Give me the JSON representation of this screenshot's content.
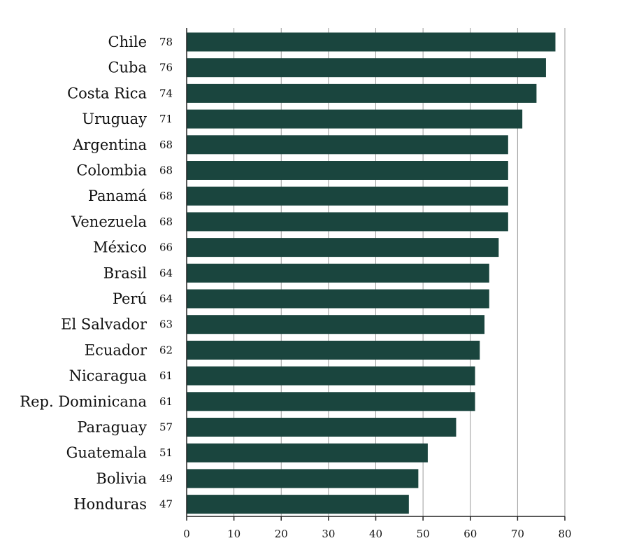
{
  "chart_data": {
    "type": "bar",
    "orientation": "horizontal",
    "categories": [
      "Chile",
      "Cuba",
      "Costa Rica",
      "Uruguay",
      "Argentina",
      "Colombia",
      "Panamá",
      "Venezuela",
      "México",
      "Brasil",
      "Perú",
      "El Salvador",
      "Ecuador",
      "Nicaragua",
      "Rep. Dominicana",
      "Paraguay",
      "Guatemala",
      "Bolivia",
      "Honduras"
    ],
    "values": [
      78,
      76,
      74,
      71,
      68,
      68,
      68,
      68,
      66,
      64,
      64,
      63,
      62,
      61,
      61,
      57,
      51,
      49,
      47
    ],
    "value_labels": [
      "78",
      "76",
      "74",
      "71",
      "68",
      "68",
      "68",
      "68",
      "66",
      "64",
      "64",
      "63",
      "62",
      "61",
      "61",
      "57",
      "51",
      "49",
      "47"
    ],
    "xticks": [
      "0",
      "10",
      "20",
      "30",
      "40",
      "50",
      "60",
      "70",
      "80"
    ],
    "xlim": [
      0,
      80
    ],
    "grid": true,
    "bar_color": "#1a453e"
  }
}
